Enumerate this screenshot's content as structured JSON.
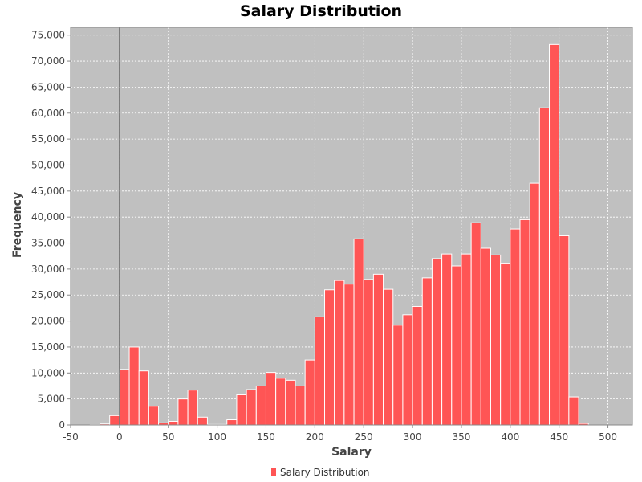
{
  "chart_data": {
    "type": "bar",
    "title": "Salary Distribution",
    "xlabel": "Salary",
    "ylabel": "Frequency",
    "xlim": [
      -50,
      525
    ],
    "ylim": [
      0,
      76500
    ],
    "bin_width": 10,
    "x_ticks": [
      -50,
      0,
      50,
      100,
      150,
      200,
      250,
      300,
      350,
      400,
      450,
      500
    ],
    "x_tick_labels": [
      "-50",
      "0",
      "50",
      "100",
      "150",
      "200",
      "250",
      "300",
      "350",
      "400",
      "450",
      "500"
    ],
    "y_ticks": [
      0,
      5000,
      10000,
      15000,
      20000,
      25000,
      30000,
      35000,
      40000,
      45000,
      50000,
      55000,
      60000,
      65000,
      70000,
      75000
    ],
    "y_tick_labels": [
      "0",
      "5,000",
      "10,000",
      "15,000",
      "20,000",
      "25,000",
      "30,000",
      "35,000",
      "40,000",
      "45,000",
      "50,000",
      "55,000",
      "60,000",
      "65,000",
      "70,000",
      "75,000"
    ],
    "grid": true,
    "legend_position": "bottom-center",
    "series": [
      {
        "name": "Salary Distribution",
        "color": "#ff5555",
        "bin_starts": [
          -30,
          -20,
          -10,
          0,
          10,
          20,
          30,
          40,
          50,
          60,
          70,
          80,
          90,
          100,
          110,
          120,
          130,
          140,
          150,
          160,
          170,
          180,
          190,
          200,
          210,
          220,
          230,
          240,
          250,
          260,
          270,
          280,
          290,
          300,
          310,
          320,
          330,
          340,
          350,
          360,
          370,
          380,
          390,
          400,
          410,
          420,
          430,
          440,
          450,
          460,
          470,
          480,
          490
        ],
        "values": [
          50,
          200,
          1800,
          10700,
          15000,
          10400,
          3600,
          400,
          700,
          5000,
          6700,
          1500,
          100,
          100,
          1000,
          5800,
          6800,
          7500,
          10100,
          9000,
          8600,
          7500,
          12500,
          20800,
          26000,
          27800,
          27100,
          35800,
          28000,
          29000,
          26100,
          19200,
          21200,
          22800,
          28300,
          32000,
          32900,
          30600,
          32900,
          38900,
          34000,
          32700,
          31000,
          37700,
          39500,
          46500,
          61000,
          73200,
          36400,
          5400,
          300,
          0,
          0
        ]
      }
    ]
  },
  "legend": {
    "label": "Salary Distribution",
    "swatch_color": "#ff5555"
  },
  "colors": {
    "plot_background": "#c0c0c0",
    "gridline": "#ffffff",
    "zero_line": "#555555",
    "bar_fill": "#ff5555",
    "bar_edge": "#ffffff"
  }
}
